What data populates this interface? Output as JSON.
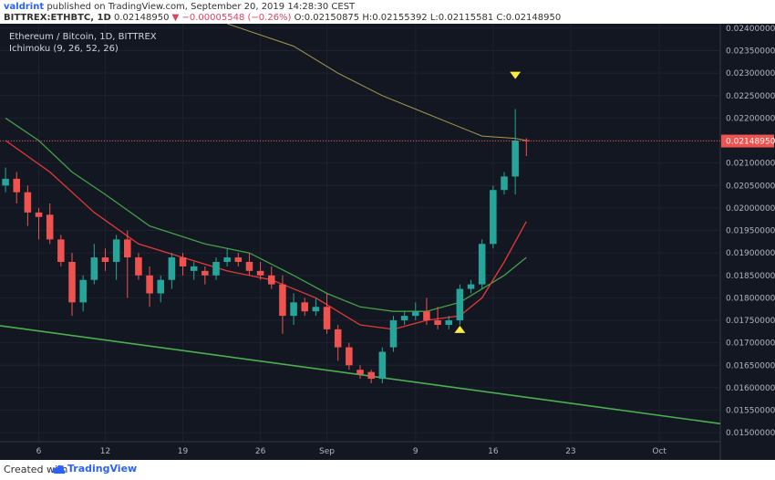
{
  "header": {
    "author": "valdrint",
    "published": "published on TradingView.com, September 20, 2019 14:28:30 CEST",
    "symbol": "BITTREX:ETHBTC, 1D",
    "last": "0.02148950",
    "change": "▼ −0.00005548 (−0.26%)",
    "ohlc": "O:0.02150875 H:0.02155392 L:0.02115581 C:0.02148950"
  },
  "legend": {
    "title": "Ethereum / Bitcoin, 1D, BITTREX",
    "indicator": "Ichimoku (9, 26, 52, 26)"
  },
  "footer": {
    "created": "Created with",
    "brand": "TradingView"
  },
  "colors": {
    "background": "#131722",
    "up": "#26a69a",
    "down": "#ef5350",
    "ichimoku_red": "#e53935",
    "ichimoku_green": "#43a047",
    "ma_yellow": "#a69a4a",
    "trendline": "#4caf50",
    "price_line": "#ef5350"
  },
  "chart_data": {
    "type": "candlestick",
    "symbol": "ETHBTC",
    "timeframe": "1D",
    "ylim": [
      0.0148,
      0.0241
    ],
    "y_ticks": [
      "0.02400000",
      "0.02350000",
      "0.02300000",
      "0.02250000",
      "0.02200000",
      "0.02150000",
      "0.02100000",
      "0.02050000",
      "0.02000000",
      "0.01950000",
      "0.01900000",
      "0.01850000",
      "0.01800000",
      "0.01750000",
      "0.01700000",
      "0.01650000",
      "0.01600000",
      "0.01550000",
      "0.01500000"
    ],
    "x_ticks": [
      {
        "label": "6",
        "index": 3
      },
      {
        "label": "12",
        "index": 9
      },
      {
        "label": "19",
        "index": 16
      },
      {
        "label": "26",
        "index": 23
      },
      {
        "label": "Sep",
        "index": 29
      },
      {
        "label": "9",
        "index": 37
      },
      {
        "label": "16",
        "index": 44
      },
      {
        "label": "23",
        "index": 51
      },
      {
        "label": "Oct",
        "index": 59
      }
    ],
    "x_range": [
      -0.5,
      64.5
    ],
    "current_price": 0.0214895,
    "current_price_label": "0.02148950",
    "candles": [
      [
        0.0205,
        0.0209,
        0.02035,
        0.02065
      ],
      [
        0.02065,
        0.0208,
        0.0201,
        0.02035
      ],
      [
        0.02035,
        0.0205,
        0.0196,
        0.0199
      ],
      [
        0.0199,
        0.02,
        0.0193,
        0.0198
      ],
      [
        0.01985,
        0.0201,
        0.0192,
        0.0193
      ],
      [
        0.0193,
        0.0194,
        0.0187,
        0.0188
      ],
      [
        0.0188,
        0.019,
        0.0176,
        0.0179
      ],
      [
        0.0179,
        0.0185,
        0.0177,
        0.0184
      ],
      [
        0.0184,
        0.0192,
        0.0183,
        0.0189
      ],
      [
        0.0189,
        0.0191,
        0.0186,
        0.0188
      ],
      [
        0.0188,
        0.0194,
        0.0184,
        0.0193
      ],
      [
        0.0193,
        0.0195,
        0.018,
        0.0189
      ],
      [
        0.0189,
        0.019,
        0.0184,
        0.0185
      ],
      [
        0.0185,
        0.0187,
        0.0178,
        0.0181
      ],
      [
        0.0181,
        0.0185,
        0.0179,
        0.0184
      ],
      [
        0.0184,
        0.019,
        0.0182,
        0.0189
      ],
      [
        0.0189,
        0.019,
        0.0185,
        0.0187
      ],
      [
        0.0186,
        0.0188,
        0.0184,
        0.0187
      ],
      [
        0.0186,
        0.0187,
        0.0183,
        0.0185
      ],
      [
        0.0185,
        0.0189,
        0.0184,
        0.0188
      ],
      [
        0.0188,
        0.0191,
        0.0187,
        0.0189
      ],
      [
        0.0189,
        0.019,
        0.0187,
        0.0188
      ],
      [
        0.0188,
        0.019,
        0.0185,
        0.0186
      ],
      [
        0.0186,
        0.0188,
        0.0184,
        0.0185
      ],
      [
        0.0185,
        0.0187,
        0.0182,
        0.0183
      ],
      [
        0.0183,
        0.0185,
        0.0172,
        0.0176
      ],
      [
        0.0176,
        0.0181,
        0.0174,
        0.0179
      ],
      [
        0.0179,
        0.018,
        0.0176,
        0.0177
      ],
      [
        0.0177,
        0.018,
        0.0176,
        0.0178
      ],
      [
        0.0178,
        0.0181,
        0.0172,
        0.0173
      ],
      [
        0.0173,
        0.0174,
        0.0166,
        0.0169
      ],
      [
        0.0169,
        0.017,
        0.0164,
        0.0165
      ],
      [
        0.0164,
        0.0165,
        0.0162,
        0.0163
      ],
      [
        0.01635,
        0.0164,
        0.0161,
        0.0162
      ],
      [
        0.0162,
        0.0169,
        0.0161,
        0.0168
      ],
      [
        0.0169,
        0.0176,
        0.0168,
        0.0175
      ],
      [
        0.0175,
        0.0177,
        0.0174,
        0.0176
      ],
      [
        0.0176,
        0.0179,
        0.0175,
        0.0177
      ],
      [
        0.0177,
        0.018,
        0.0174,
        0.0175
      ],
      [
        0.0175,
        0.0178,
        0.0173,
        0.0174
      ],
      [
        0.0174,
        0.0176,
        0.0173,
        0.0175
      ],
      [
        0.0175,
        0.0183,
        0.0174,
        0.0182
      ],
      [
        0.0182,
        0.0184,
        0.0181,
        0.0183
      ],
      [
        0.0183,
        0.0193,
        0.0182,
        0.0192
      ],
      [
        0.0192,
        0.0205,
        0.0191,
        0.0204
      ],
      [
        0.0204,
        0.0208,
        0.0203,
        0.0207
      ],
      [
        0.0207,
        0.0222,
        0.0203,
        0.0215
      ],
      [
        0.02150875,
        0.02155392,
        0.02115581,
        0.0214895
      ]
    ],
    "ichimoku_red": [
      [
        0,
        0.0215
      ],
      [
        4,
        0.0208
      ],
      [
        8,
        0.0199
      ],
      [
        12,
        0.0192
      ],
      [
        16,
        0.0189
      ],
      [
        20,
        0.0186
      ],
      [
        24,
        0.0184
      ],
      [
        28,
        0.018
      ],
      [
        32,
        0.0174
      ],
      [
        35,
        0.0173
      ],
      [
        38,
        0.0175
      ],
      [
        41,
        0.0176
      ],
      [
        43,
        0.018
      ],
      [
        45,
        0.0188
      ],
      [
        47,
        0.0197
      ]
    ],
    "ichimoku_green": [
      [
        0,
        0.022
      ],
      [
        3,
        0.0215
      ],
      [
        6,
        0.0208
      ],
      [
        9,
        0.0203
      ],
      [
        13,
        0.0196
      ],
      [
        18,
        0.0192
      ],
      [
        22,
        0.019
      ],
      [
        26,
        0.0185
      ],
      [
        29,
        0.0181
      ],
      [
        32,
        0.0178
      ],
      [
        35,
        0.0177
      ],
      [
        38,
        0.0177
      ],
      [
        41,
        0.0179
      ],
      [
        43,
        0.0182
      ],
      [
        45,
        0.0185
      ],
      [
        47,
        0.0189
      ]
    ],
    "ma_yellow": [
      [
        20,
        0.0241
      ],
      [
        26,
        0.0236
      ],
      [
        30,
        0.023
      ],
      [
        34,
        0.0225
      ],
      [
        38,
        0.0221
      ],
      [
        41,
        0.0218
      ],
      [
        43,
        0.0216
      ],
      [
        46,
        0.02155
      ],
      [
        47,
        0.0215
      ]
    ],
    "trendline": [
      [
        -0.5,
        0.01738
      ],
      [
        64.5,
        0.0152
      ]
    ],
    "markers": [
      {
        "type": "down-arrow",
        "index": 46,
        "value": 0.02295
      },
      {
        "type": "up-arrow",
        "index": 41,
        "value": 0.0173
      }
    ]
  }
}
